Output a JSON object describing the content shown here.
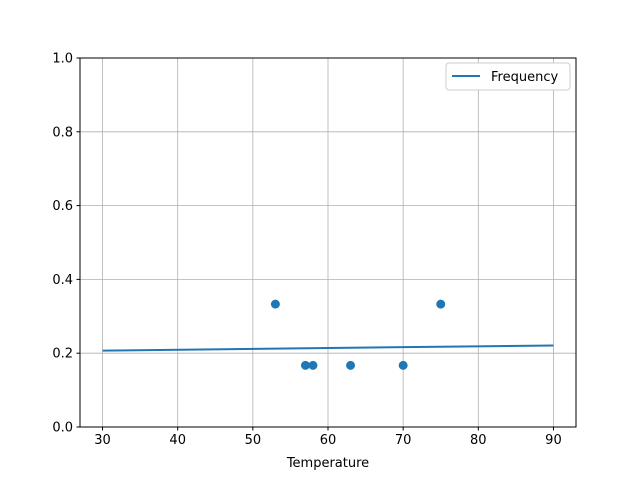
{
  "chart_data": {
    "type": "scatter+line",
    "title": "",
    "xlabel": "Temperature",
    "ylabel": "",
    "xlim": [
      27,
      93
    ],
    "ylim": [
      0,
      1.0
    ],
    "grid": true,
    "xticks": [
      30,
      40,
      50,
      60,
      70,
      80,
      90
    ],
    "yticks": [
      0.0,
      0.2,
      0.4,
      0.6,
      0.8,
      1.0
    ],
    "xtick_labels": [
      "30",
      "40",
      "50",
      "60",
      "70",
      "80",
      "90"
    ],
    "ytick_labels": [
      "0.0",
      "0.2",
      "0.4",
      "0.6",
      "0.8",
      "1.0"
    ],
    "legend_position": "top-right",
    "color": "#1f77b4",
    "series": [
      {
        "name": "Frequency",
        "type": "line",
        "x": [
          30,
          90
        ],
        "y": [
          0.207,
          0.221
        ]
      },
      {
        "type": "scatter",
        "x": [
          53,
          57,
          58,
          63,
          70,
          75
        ],
        "y": [
          0.333,
          0.167,
          0.167,
          0.167,
          0.167,
          0.333
        ]
      }
    ]
  }
}
